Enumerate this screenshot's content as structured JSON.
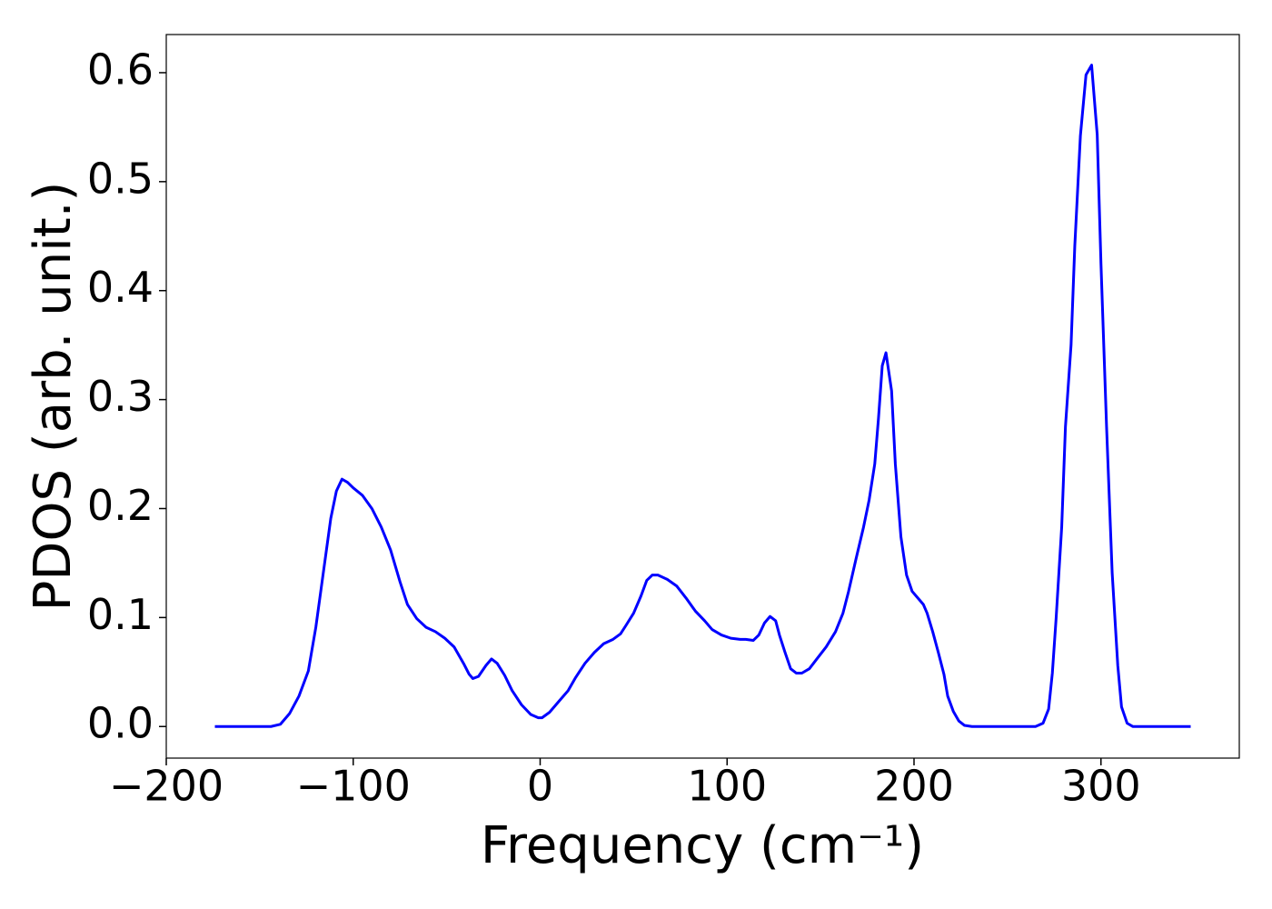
{
  "chart_data": {
    "type": "line",
    "xlabel": "Frequency (cm⁻¹)",
    "ylabel": "PDOS (arb. unit.)",
    "xlim": [
      -200,
      374
    ],
    "ylim": [
      -0.029,
      0.635
    ],
    "xticks": [
      {
        "value": -200,
        "label": "−200"
      },
      {
        "value": -100,
        "label": "−100"
      },
      0,
      100,
      200,
      300
    ],
    "yticks": [
      {
        "value": 0,
        "label": "0.0"
      },
      0.1,
      0.2,
      0.3,
      0.4,
      0.5,
      0.6
    ],
    "series": [
      {
        "color": "#0000ff",
        "x": [
          -174,
          -144,
          -139,
          -134,
          -129,
          -124,
          -120,
          -118,
          -112,
          -109,
          -106,
          -103,
          -100,
          -95,
          -90,
          -85,
          -80,
          -75,
          -71,
          -66,
          -61,
          -56,
          -51,
          -46,
          -41,
          -38,
          -36,
          -33,
          -29,
          -26,
          -23,
          -19,
          -15,
          -10,
          -5,
          -1,
          1,
          5,
          10,
          15,
          19,
          24,
          29,
          34,
          39,
          43,
          46,
          50,
          54,
          57,
          60,
          63,
          68,
          73,
          78,
          83,
          88,
          92,
          97,
          102,
          107,
          110,
          114,
          117,
          120,
          123,
          126,
          128,
          131,
          134,
          137,
          140,
          144,
          148,
          153,
          158,
          162,
          165,
          169,
          173,
          176,
          179,
          181,
          183,
          185,
          188,
          190,
          193,
          196,
          199,
          202,
          205,
          207,
          210,
          213,
          216,
          218,
          221,
          224,
          227,
          231,
          265,
          269,
          272,
          274,
          276,
          279,
          281,
          284,
          286,
          289,
          292,
          295,
          298,
          300,
          303,
          306,
          309,
          311,
          314,
          317,
          348
        ],
        "values": [
          0,
          0,
          0.002,
          0.012,
          0.028,
          0.051,
          0.091,
          0.116,
          0.191,
          0.216,
          0.227,
          0.224,
          0.219,
          0.212,
          0.2,
          0.183,
          0.162,
          0.133,
          0.112,
          0.099,
          0.091,
          0.087,
          0.081,
          0.073,
          0.058,
          0.048,
          0.044,
          0.046,
          0.056,
          0.062,
          0.058,
          0.047,
          0.033,
          0.02,
          0.011,
          0.008,
          0.008,
          0.013,
          0.023,
          0.033,
          0.045,
          0.058,
          0.068,
          0.076,
          0.08,
          0.085,
          0.093,
          0.104,
          0.12,
          0.134,
          0.139,
          0.139,
          0.135,
          0.129,
          0.118,
          0.106,
          0.097,
          0.089,
          0.084,
          0.081,
          0.08,
          0.08,
          0.079,
          0.084,
          0.095,
          0.101,
          0.097,
          0.084,
          0.068,
          0.053,
          0.049,
          0.049,
          0.053,
          0.062,
          0.073,
          0.087,
          0.104,
          0.124,
          0.154,
          0.183,
          0.208,
          0.241,
          0.283,
          0.331,
          0.343,
          0.308,
          0.241,
          0.174,
          0.139,
          0.124,
          0.118,
          0.112,
          0.104,
          0.087,
          0.068,
          0.048,
          0.028,
          0.014,
          0.005,
          0.001,
          0,
          0,
          0.003,
          0.016,
          0.049,
          0.099,
          0.183,
          0.275,
          0.35,
          0.441,
          0.542,
          0.598,
          0.607,
          0.543,
          0.425,
          0.275,
          0.141,
          0.056,
          0.018,
          0.003,
          0,
          0
        ]
      }
    ]
  }
}
